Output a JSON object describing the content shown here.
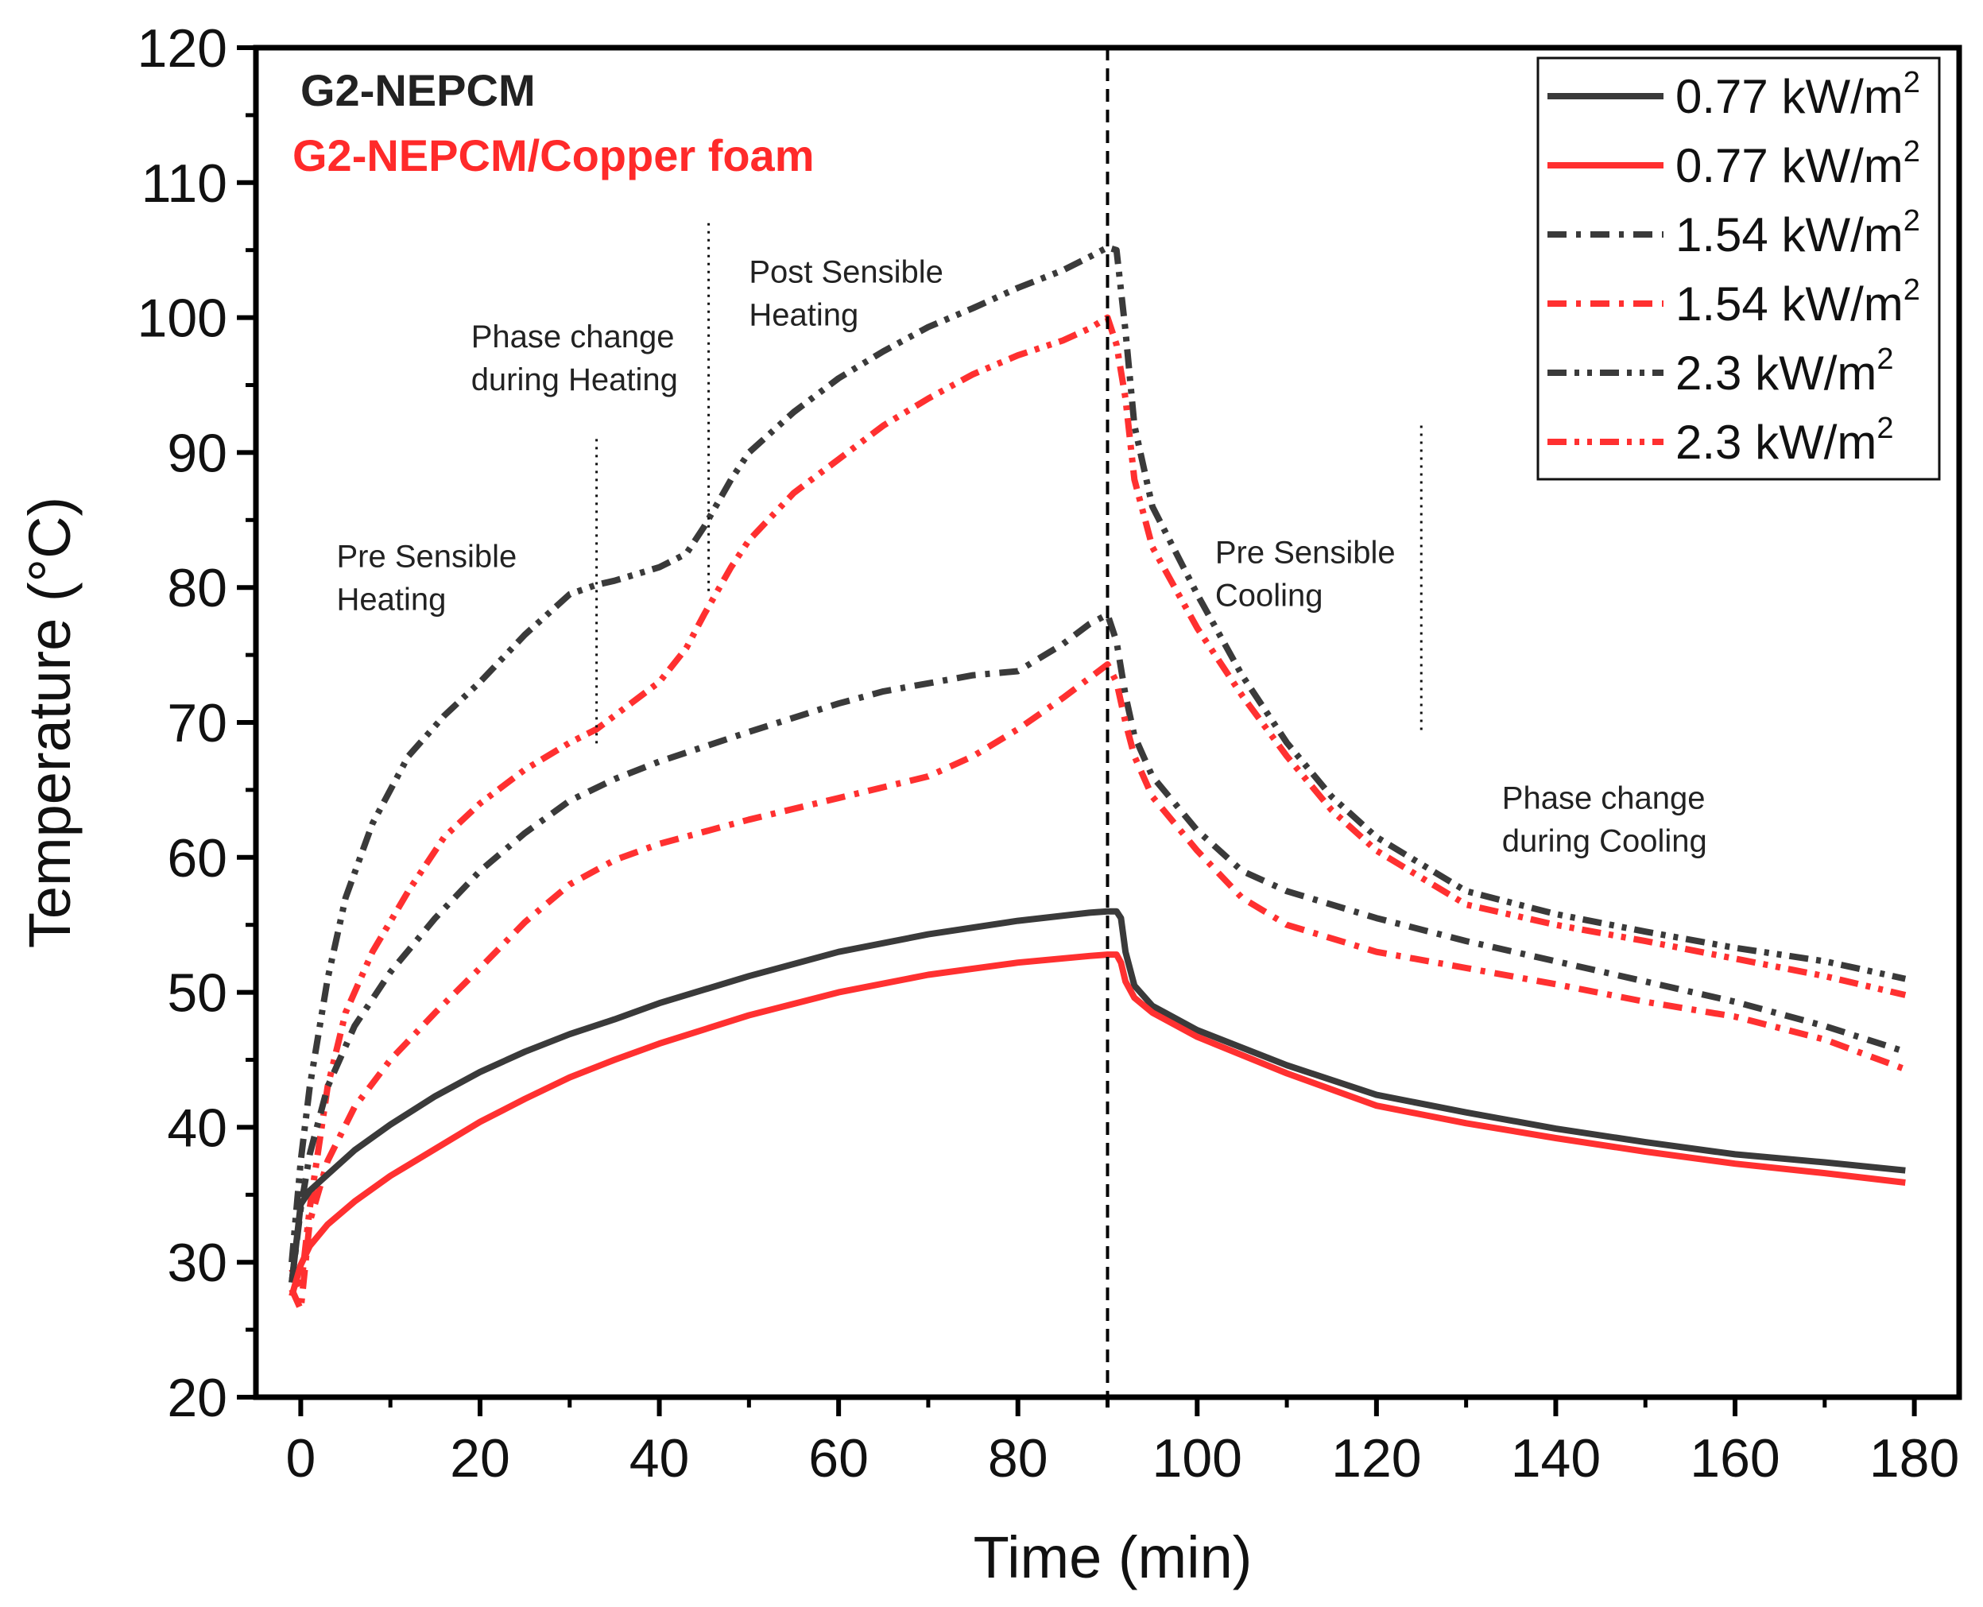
{
  "chart_data": {
    "type": "line",
    "title": "",
    "xlabel": "Time (min)",
    "ylabel": "Temperature (°C)",
    "xlim": [
      -5,
      185
    ],
    "ylim": [
      20,
      120
    ],
    "x_ticks": [
      0,
      20,
      40,
      60,
      80,
      100,
      120,
      140,
      160,
      180
    ],
    "y_ticks": [
      20,
      30,
      40,
      50,
      60,
      70,
      80,
      90,
      100,
      110,
      120
    ],
    "x_tick_labels": [
      "0",
      "20",
      "40",
      "60",
      "80",
      "100",
      "120",
      "140",
      "160",
      "180"
    ],
    "y_tick_labels": [
      "20",
      "30",
      "40",
      "50",
      "60",
      "70",
      "80",
      "90",
      "100",
      "110",
      "120"
    ],
    "group_labels": [
      {
        "text": "G2-NEPCM",
        "color": "#222222"
      },
      {
        "text": "G2-NEPCM/Copper foam",
        "color": "#ff2a2a"
      }
    ],
    "legend_unit": "kW/m",
    "legend_unit_sup": "2",
    "phase_divider_x": 90,
    "stage_markers": [
      {
        "x": 33,
        "y_top": 91
      },
      {
        "x": 45.5,
        "y_top": 107
      },
      {
        "x": 125,
        "y_top": 92
      }
    ],
    "annotations": [
      {
        "lines": [
          "Pre Sensible",
          "Heating"
        ],
        "x": 4,
        "y": 81.5
      },
      {
        "lines": [
          "Phase change",
          "during Heating"
        ],
        "x": 19,
        "y": 97.8
      },
      {
        "lines": [
          "Post Sensible",
          "Heating"
        ],
        "x": 50,
        "y": 102.6
      },
      {
        "lines": [
          "Pre Sensible",
          "Cooling"
        ],
        "x": 102,
        "y": 81.8
      },
      {
        "lines": [
          "Phase change",
          "during Cooling"
        ],
        "x": 134,
        "y": 63.6
      }
    ],
    "series": [
      {
        "name": "0.77",
        "color": "#3a3a3a",
        "dash": "solid",
        "x": [
          -1,
          0,
          1,
          3,
          6,
          10,
          15,
          20,
          25,
          30,
          35,
          40,
          50,
          60,
          70,
          80,
          88,
          90,
          91,
          91.5,
          92,
          93,
          95,
          100,
          110,
          120,
          130,
          140,
          150,
          160,
          170,
          179
        ],
        "y": [
          28.5,
          34.3,
          35.3,
          36.5,
          38.3,
          40.2,
          42.3,
          44.1,
          45.6,
          46.9,
          48.0,
          49.2,
          51.2,
          53.0,
          54.3,
          55.3,
          55.9,
          56.0,
          56.0,
          55.5,
          53.0,
          50.5,
          49.0,
          47.2,
          44.6,
          42.4,
          41.1,
          39.9,
          38.9,
          38.0,
          37.4,
          36.8
        ]
      },
      {
        "name": "0.77",
        "color": "#ff3030",
        "dash": "solid",
        "x": [
          -1,
          0,
          1,
          3,
          6,
          10,
          15,
          20,
          25,
          30,
          35,
          40,
          50,
          60,
          70,
          80,
          88,
          90,
          91,
          91.5,
          92,
          93,
          95,
          100,
          110,
          120,
          130,
          140,
          150,
          160,
          170,
          179
        ],
        "y": [
          27.5,
          29.8,
          31.2,
          32.8,
          34.5,
          36.4,
          38.4,
          40.4,
          42.1,
          43.7,
          45.0,
          46.2,
          48.3,
          50.0,
          51.3,
          52.2,
          52.7,
          52.8,
          52.8,
          52.2,
          50.8,
          49.6,
          48.5,
          46.7,
          44.0,
          41.6,
          40.3,
          39.2,
          38.2,
          37.3,
          36.6,
          35.9
        ]
      },
      {
        "name": "1.54",
        "color": "#3a3a3a",
        "dash": "24 12 6 12",
        "x": [
          -1,
          0,
          1,
          3,
          6,
          10,
          15,
          20,
          25,
          30,
          35,
          40,
          50,
          60,
          65,
          70,
          75,
          80,
          85,
          88,
          90,
          91,
          92,
          93,
          95,
          100,
          105,
          110,
          120,
          130,
          140,
          150,
          160,
          170,
          179
        ],
        "y": [
          28.5,
          34.0,
          38.0,
          43.0,
          47.5,
          51.5,
          55.5,
          59.0,
          61.8,
          64.2,
          65.8,
          67.1,
          69.3,
          71.4,
          72.3,
          72.9,
          73.5,
          73.8,
          75.8,
          77.3,
          78.0,
          76.0,
          72.0,
          69.0,
          66.0,
          62.0,
          59.0,
          57.5,
          55.5,
          53.8,
          52.3,
          50.8,
          49.3,
          47.5,
          45.6
        ]
      },
      {
        "name": "1.54",
        "color": "#ff3030",
        "dash": "24 12 6 12",
        "x": [
          -1,
          0,
          1,
          3,
          6,
          10,
          15,
          20,
          25,
          30,
          35,
          40,
          50,
          60,
          65,
          70,
          75,
          80,
          85,
          88,
          90,
          91,
          92,
          93,
          95,
          100,
          105,
          110,
          120,
          130,
          140,
          150,
          160,
          170,
          179
        ],
        "y": [
          28.0,
          26.5,
          33.0,
          37.5,
          41.5,
          45.0,
          48.5,
          51.8,
          55.2,
          58.0,
          59.8,
          61.0,
          62.8,
          64.4,
          65.2,
          66.0,
          67.5,
          69.5,
          71.8,
          73.3,
          74.3,
          73.0,
          70.0,
          67.5,
          64.5,
          60.5,
          57.0,
          55.0,
          53.0,
          51.8,
          50.6,
          49.3,
          48.2,
          46.5,
          44.3
        ]
      },
      {
        "name": "2.3",
        "color": "#3a3a3a",
        "dash": "24 10 6 10 6 10",
        "x": [
          -1,
          0,
          1,
          3,
          5,
          8,
          12,
          16,
          20,
          25,
          30,
          33,
          35,
          40,
          43,
          45,
          48,
          50,
          55,
          60,
          65,
          70,
          75,
          80,
          85,
          88,
          90,
          91,
          92,
          93,
          95,
          100,
          105,
          110,
          115,
          120,
          125,
          130,
          140,
          150,
          160,
          170,
          179
        ],
        "y": [
          30.0,
          37.5,
          43.0,
          51.0,
          57.0,
          62.5,
          67.5,
          70.5,
          73.0,
          76.5,
          79.5,
          80.2,
          80.5,
          81.5,
          82.5,
          84.5,
          88.0,
          90.0,
          93.0,
          95.5,
          97.5,
          99.3,
          100.7,
          102.2,
          103.5,
          104.5,
          105.2,
          105.0,
          99.0,
          92.0,
          86.0,
          79.5,
          73.5,
          68.5,
          64.5,
          61.5,
          59.5,
          57.5,
          55.8,
          54.5,
          53.3,
          52.3,
          51.0
        ]
      },
      {
        "name": "2.3",
        "color": "#ff3030",
        "dash": "24 10 6 10 6 10",
        "x": [
          -1,
          0,
          1,
          3,
          5,
          8,
          12,
          16,
          20,
          25,
          30,
          33,
          35,
          40,
          43,
          45,
          48,
          50,
          55,
          60,
          65,
          70,
          75,
          80,
          85,
          88,
          90,
          91,
          92,
          93,
          95,
          100,
          105,
          110,
          115,
          120,
          125,
          130,
          140,
          150,
          160,
          170,
          179
        ],
        "y": [
          29.5,
          28.0,
          34.0,
          43.0,
          48.5,
          53.0,
          57.5,
          61.5,
          64.0,
          66.5,
          68.5,
          69.5,
          70.5,
          73.0,
          75.5,
          78.0,
          81.5,
          83.5,
          87.0,
          89.5,
          92.0,
          94.0,
          95.8,
          97.2,
          98.3,
          99.2,
          100.0,
          98.0,
          94.0,
          88.0,
          83.0,
          77.0,
          72.0,
          67.5,
          63.5,
          60.5,
          58.5,
          56.5,
          55.0,
          53.8,
          52.5,
          51.2,
          49.8
        ]
      }
    ]
  }
}
